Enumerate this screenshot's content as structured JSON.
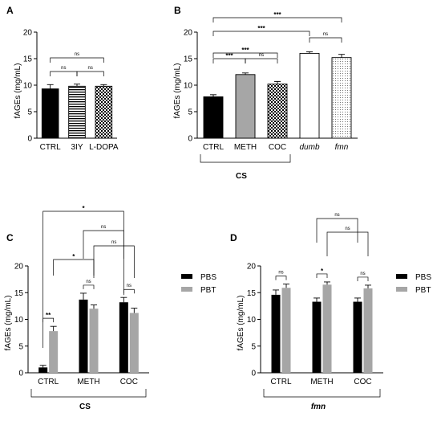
{
  "chart_data": [
    {
      "panel_label": "A",
      "type": "bar",
      "categories": [
        "CTRL",
        "3IY",
        "L-DOPA"
      ],
      "values": [
        9.3,
        9.8,
        9.8
      ],
      "errors": [
        0.8,
        0.4,
        0.3
      ],
      "fills": [
        "black",
        "hstripe",
        "checker"
      ],
      "ylabel": "fAGEs (mg/mL)",
      "ylim": [
        0,
        20
      ],
      "yticks": [
        "0",
        "5",
        "10",
        "15",
        "20"
      ],
      "italic_categories": [],
      "group_label": "",
      "comparisons": [
        {
          "from": 0,
          "to": 1,
          "label": "ns",
          "level": 0
        },
        {
          "from": 1,
          "to": 2,
          "label": "ns",
          "level": 0
        },
        {
          "from": 0,
          "to": 2,
          "label": "ns",
          "level": 1
        }
      ]
    },
    {
      "panel_label": "B",
      "type": "bar",
      "categories": [
        "CTRL",
        "METH",
        "COC",
        "dumb",
        "fmn"
      ],
      "values": [
        7.8,
        12.0,
        10.2,
        16.0,
        15.2
      ],
      "errors": [
        0.4,
        0.3,
        0.5,
        0.3,
        0.6
      ],
      "fills": [
        "black",
        "gray",
        "checker",
        "white",
        "dots"
      ],
      "ylabel": "fAGEs (mg/mL)",
      "ylim": [
        0,
        20
      ],
      "yticks": [
        "0",
        "5",
        "10",
        "15",
        "20"
      ],
      "italic_categories": [
        3,
        4
      ],
      "group_label": "CS",
      "group_span": [
        0,
        2
      ],
      "comparisons": [
        {
          "from": 0,
          "to": 1,
          "label": "***",
          "level": 0
        },
        {
          "from": 1,
          "to": 2,
          "label": "ns",
          "level": 0
        },
        {
          "from": 0,
          "to": 2,
          "label": "***",
          "level": 1
        },
        {
          "from": 3,
          "to": 4,
          "label": "ns",
          "level": 2
        },
        {
          "from": 0,
          "to": 3,
          "label": "***",
          "level": 3
        },
        {
          "from": 0,
          "to": 4,
          "label": "***",
          "level": 4
        }
      ]
    },
    {
      "panel_label": "C",
      "type": "bar",
      "categories": [
        "CTRL",
        "METH",
        "COC"
      ],
      "series": [
        {
          "name": "PBS",
          "values": [
            1.0,
            13.7,
            13.2
          ],
          "errors": [
            0.4,
            1.2,
            0.9
          ],
          "color": "#000000"
        },
        {
          "name": "PBT",
          "values": [
            7.8,
            12.0,
            11.2
          ],
          "errors": [
            0.9,
            0.7,
            0.9
          ],
          "color": "#a6a6a6"
        }
      ],
      "ylabel": "fAGEs (mg/mL)",
      "ylim": [
        0,
        20
      ],
      "yticks": [
        "0",
        "5",
        "10",
        "15",
        "20"
      ],
      "group_label": "CS",
      "group_label_italic": false,
      "pair_labels": [
        "**",
        "ns",
        "ns"
      ],
      "comparisons": [
        {
          "from": [
            0,
            1
          ],
          "to": [
            1,
            1
          ],
          "label": "*",
          "level": 0
        },
        {
          "from": [
            1,
            1
          ],
          "to": [
            2,
            1
          ],
          "label": "ns",
          "level": 1
        },
        {
          "from": [
            1,
            0
          ],
          "to": [
            2,
            0
          ],
          "label": "ns",
          "level": 2
        },
        {
          "from": [
            0,
            0
          ],
          "to": [
            2,
            0
          ],
          "label": "*",
          "level": 3
        }
      ],
      "legend": "right"
    },
    {
      "panel_label": "D",
      "type": "bar",
      "categories": [
        "CTRL",
        "METH",
        "COC"
      ],
      "series": [
        {
          "name": "PBS",
          "values": [
            14.6,
            13.3,
            13.3
          ],
          "errors": [
            0.9,
            0.7,
            0.7
          ],
          "color": "#000000"
        },
        {
          "name": "PBT",
          "values": [
            15.9,
            16.5,
            15.8
          ],
          "errors": [
            0.7,
            0.5,
            0.6
          ],
          "color": "#a6a6a6"
        }
      ],
      "ylabel": "fAGEs (mg/mL)",
      "ylim": [
        0,
        20
      ],
      "yticks": [
        "0",
        "5",
        "10",
        "15",
        "20"
      ],
      "group_label": "fmn",
      "group_label_italic": true,
      "pair_labels": [
        "ns",
        "*",
        "ns"
      ],
      "comparisons": [
        {
          "from": [
            1,
            1
          ],
          "to": [
            2,
            1
          ],
          "label": "ns",
          "level": 0
        },
        {
          "from": [
            1,
            0
          ],
          "to": [
            2,
            0
          ],
          "label": "ns",
          "level": 1
        }
      ],
      "legend": "right"
    }
  ]
}
